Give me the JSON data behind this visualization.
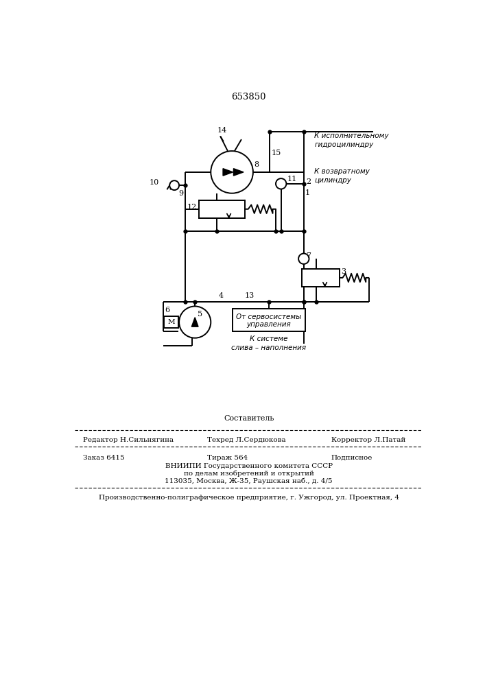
{
  "patent_number": "653850",
  "bg_color": "#ffffff",
  "line_color": "#000000",
  "fig_width": 7.07,
  "fig_height": 10.0,
  "dpi": 100,
  "label_k_ispoln": "К исполнительному\nгидроцилиндру",
  "label_k_vozvr": "К возвратному\nцилиндру",
  "label_ot_servo": "От сервосистемы\nуправления",
  "label_k_sisteme": "К системе\nслива – наполнения",
  "sestavitel": "Составитель",
  "editor": "Редактор Н.Сильнягина",
  "tehred": "Техред Л.Сердюкова",
  "korrektor": "Корректор Л.Патай",
  "zakaz": "Заказ 6415",
  "tirazh": "Тираж 564",
  "podpisnoe": "Подписное",
  "vnipi1": "ВНИИПИ Государственного комитета СССР",
  "vnipi2": "по делам изобретений и открытий",
  "vnipi3": "113035, Москва, Ж-35, Раушская наб., д. 4/5",
  "factory": "Производственно-полиграфическое предприятие, г. Ужгород, ул. Проектная, 4"
}
